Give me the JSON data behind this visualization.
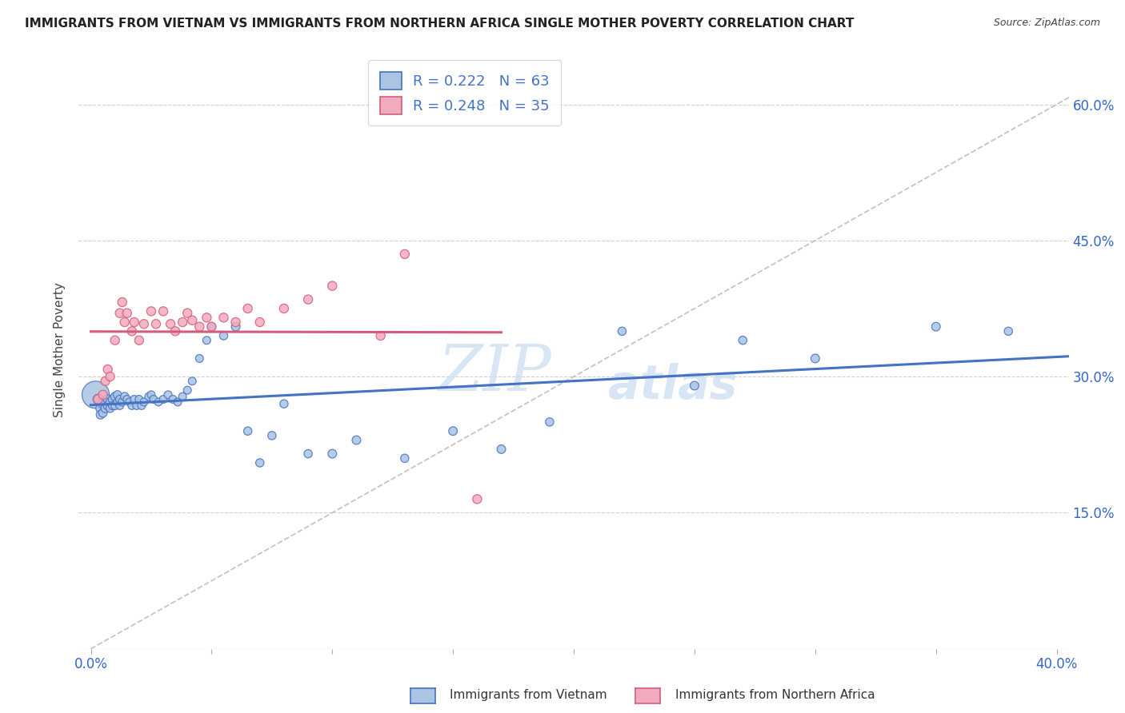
{
  "title": "IMMIGRANTS FROM VIETNAM VS IMMIGRANTS FROM NORTHERN AFRICA SINGLE MOTHER POVERTY CORRELATION CHART",
  "source": "Source: ZipAtlas.com",
  "ylabel": "Single Mother Poverty",
  "legend_label_vietnam": "Immigrants from Vietnam",
  "legend_label_africa": "Immigrants from Northern Africa",
  "color_vietnam": "#aac4e2",
  "color_africa": "#f2abbe",
  "color_line_vietnam": "#4472c4",
  "color_line_africa": "#d45c7a",
  "color_line_diag": "#c0b0b8",
  "R_vietnam": 0.222,
  "N_vietnam": 63,
  "R_africa": 0.248,
  "N_africa": 35,
  "vietnam_x": [
    0.002,
    0.003,
    0.004,
    0.004,
    0.005,
    0.005,
    0.006,
    0.006,
    0.007,
    0.007,
    0.008,
    0.008,
    0.009,
    0.009,
    0.01,
    0.01,
    0.011,
    0.011,
    0.012,
    0.012,
    0.013,
    0.014,
    0.015,
    0.016,
    0.017,
    0.018,
    0.019,
    0.02,
    0.021,
    0.022,
    0.024,
    0.025,
    0.026,
    0.028,
    0.03,
    0.032,
    0.034,
    0.036,
    0.038,
    0.04,
    0.042,
    0.045,
    0.048,
    0.05,
    0.055,
    0.06,
    0.065,
    0.07,
    0.075,
    0.08,
    0.09,
    0.1,
    0.11,
    0.13,
    0.15,
    0.17,
    0.19,
    0.22,
    0.25,
    0.27,
    0.3,
    0.35,
    0.38
  ],
  "vietnam_y": [
    0.28,
    0.275,
    0.265,
    0.258,
    0.27,
    0.26,
    0.272,
    0.265,
    0.275,
    0.268,
    0.272,
    0.265,
    0.275,
    0.268,
    0.278,
    0.268,
    0.28,
    0.272,
    0.275,
    0.268,
    0.272,
    0.278,
    0.275,
    0.272,
    0.268,
    0.275,
    0.268,
    0.275,
    0.268,
    0.272,
    0.278,
    0.28,
    0.275,
    0.272,
    0.275,
    0.28,
    0.275,
    0.272,
    0.278,
    0.285,
    0.295,
    0.32,
    0.34,
    0.355,
    0.345,
    0.355,
    0.24,
    0.205,
    0.235,
    0.27,
    0.215,
    0.215,
    0.23,
    0.21,
    0.24,
    0.22,
    0.25,
    0.35,
    0.29,
    0.34,
    0.32,
    0.355,
    0.35
  ],
  "vietnam_sizes": [
    600,
    80,
    70,
    60,
    70,
    60,
    65,
    60,
    65,
    60,
    60,
    55,
    60,
    55,
    60,
    55,
    55,
    50,
    55,
    50,
    50,
    55,
    50,
    50,
    50,
    50,
    50,
    50,
    50,
    50,
    50,
    50,
    50,
    50,
    50,
    50,
    50,
    50,
    50,
    50,
    50,
    50,
    50,
    55,
    55,
    60,
    55,
    55,
    55,
    55,
    55,
    60,
    60,
    55,
    60,
    60,
    55,
    55,
    60,
    55,
    60,
    60,
    55
  ],
  "africa_x": [
    0.003,
    0.005,
    0.006,
    0.007,
    0.008,
    0.01,
    0.012,
    0.013,
    0.014,
    0.015,
    0.017,
    0.018,
    0.02,
    0.022,
    0.025,
    0.027,
    0.03,
    0.033,
    0.035,
    0.038,
    0.04,
    0.042,
    0.045,
    0.048,
    0.05,
    0.055,
    0.06,
    0.065,
    0.07,
    0.08,
    0.09,
    0.1,
    0.12,
    0.13,
    0.16
  ],
  "africa_y": [
    0.275,
    0.28,
    0.295,
    0.308,
    0.3,
    0.34,
    0.37,
    0.382,
    0.36,
    0.37,
    0.35,
    0.36,
    0.34,
    0.358,
    0.372,
    0.358,
    0.372,
    0.358,
    0.35,
    0.36,
    0.37,
    0.362,
    0.355,
    0.365,
    0.355,
    0.365,
    0.36,
    0.375,
    0.36,
    0.375,
    0.385,
    0.4,
    0.345,
    0.435,
    0.165
  ],
  "africa_sizes": [
    70,
    65,
    65,
    65,
    65,
    65,
    65,
    65,
    65,
    65,
    65,
    65,
    65,
    65,
    65,
    65,
    65,
    65,
    65,
    65,
    65,
    65,
    65,
    65,
    65,
    65,
    65,
    65,
    65,
    65,
    65,
    65,
    65,
    65,
    65
  ],
  "xlim": [
    -0.005,
    0.405
  ],
  "ylim": [
    0.0,
    0.66
  ],
  "x_ticks": [
    0.0,
    0.05,
    0.1,
    0.15,
    0.2,
    0.25,
    0.3,
    0.35,
    0.4
  ],
  "x_tick_labels": [
    "0.0%",
    "",
    "",
    "",
    "",
    "",
    "",
    "",
    "40.0%"
  ],
  "y_ticks": [
    0.15,
    0.3,
    0.45,
    0.6
  ],
  "y_tick_labels": [
    "15.0%",
    "30.0%",
    "45.0%",
    "60.0%"
  ],
  "watermark_text": "ZIP",
  "watermark_text2": "atlas",
  "watermark_color": "#c8daf0"
}
